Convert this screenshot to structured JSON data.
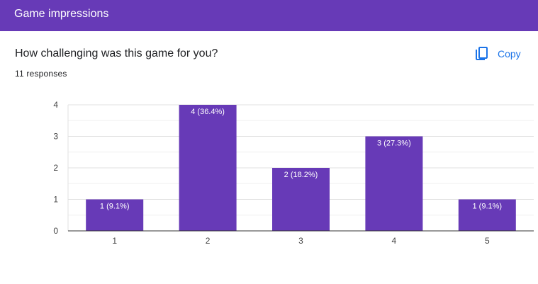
{
  "header": {
    "title": "Game impressions"
  },
  "question": {
    "text": "How challenging was this game for you?",
    "responses": "11 responses"
  },
  "copy": {
    "label": "Copy",
    "icon": "copy-icon"
  },
  "colors": {
    "accent": "#673ab7",
    "bar": "#673ab7",
    "link": "#1a73e8"
  },
  "chart_data": {
    "type": "bar",
    "categories": [
      "1",
      "2",
      "3",
      "4",
      "5"
    ],
    "values": [
      1,
      4,
      2,
      3,
      1
    ],
    "data_labels": [
      "1 (9.1%)",
      "4 (36.4%)",
      "2 (18.2%)",
      "3 (27.3%)",
      "1 (9.1%)"
    ],
    "ylim": [
      0,
      4
    ],
    "yticks": [
      "0",
      "1",
      "2",
      "3",
      "4"
    ],
    "grid": true,
    "title": "",
    "xlabel": "",
    "ylabel": ""
  }
}
